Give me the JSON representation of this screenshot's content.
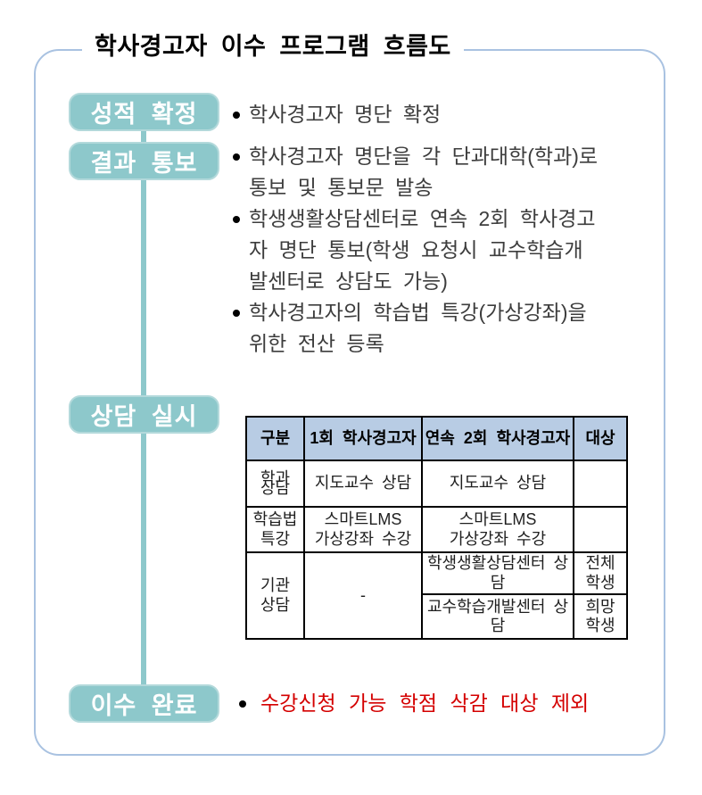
{
  "title": "학사경고자 이수 프로그램 흐름도",
  "flow_steps": {
    "grade_confirm": "성적 확정",
    "result_notice": "결과 통보",
    "counseling": "상담 실시",
    "completion": "이수 완료"
  },
  "bullets": {
    "grade_confirm": "학사경고자 명단 확정",
    "notice_1": "학사경고자 명단을 각 단과대학(학과)로\n통보 및 통보문 발송",
    "notice_2": "학생생활상담센터로 연속 2회 학사경고\n자 명단 통보(학생 요청시 교수학습개\n발센터로 상담도 가능)",
    "notice_3": "학사경고자의 학습법 특강(가상강좌)을\n위한 전산 등록",
    "completion": "수강신청 가능 학점 삭감 대상 제외"
  },
  "table": {
    "headers": [
      "구분",
      "1회 학사경고자",
      "연속 2회 학사경고자",
      "대상"
    ],
    "row_dept": {
      "category": "학과\n상담",
      "first_warning": "지도교수 상담",
      "second_warning": "지도교수 상담",
      "target": ""
    },
    "row_study": {
      "category": "학습법\n특강",
      "first_warning": "스마트LMS\n가상강좌 수강",
      "second_warning": "스마트LMS\n가상강좌 수강",
      "target": ""
    },
    "row_org": {
      "category": "기관\n상담",
      "first_warning": "-",
      "second_warning_a": "학생생활상담센터 상담",
      "target_a": "전체\n학생",
      "second_warning_b": "교수학습개발센터 상담",
      "target_b": "희망\n학생"
    }
  },
  "colors": {
    "step_box_fill": "#8DC8CB",
    "step_box_edge": "#B3D9DB",
    "frame_border": "#A9C2E1",
    "table_header_bg": "#B8CCE4",
    "alert_text": "#D40000"
  }
}
